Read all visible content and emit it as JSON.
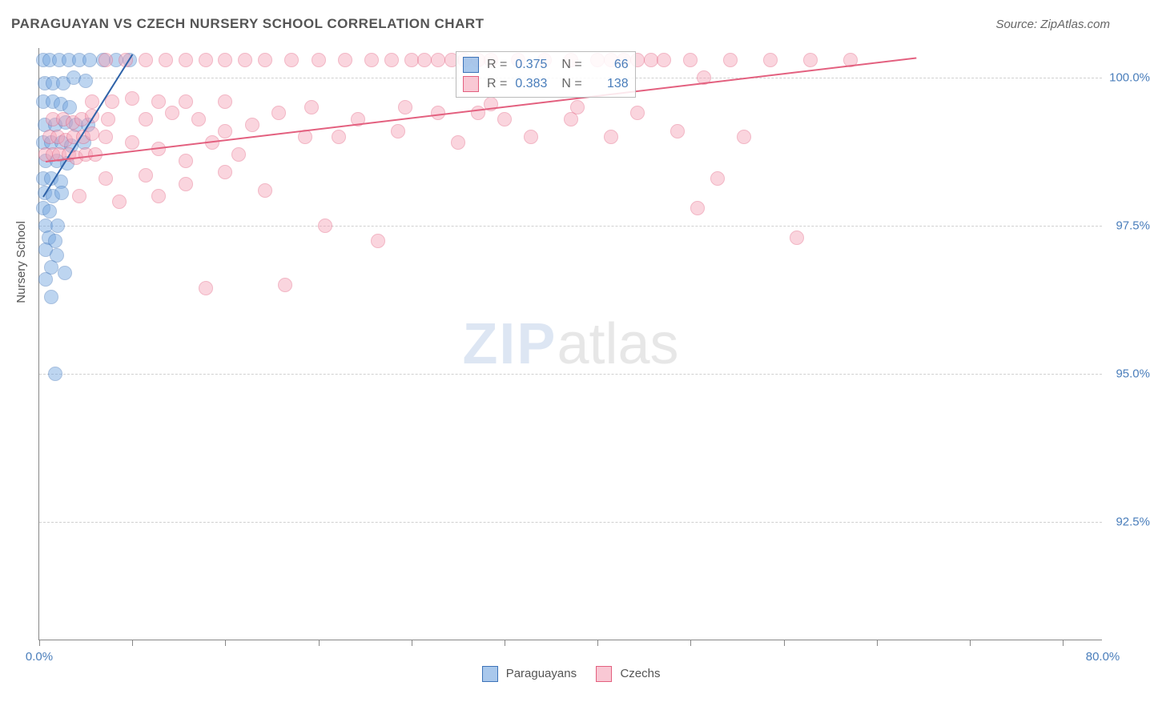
{
  "title": "PARAGUAYAN VS CZECH NURSERY SCHOOL CORRELATION CHART",
  "source_label": "Source: ZipAtlas.com",
  "ylabel": "Nursery School",
  "watermark": {
    "part1": "ZIP",
    "part2": "atlas"
  },
  "chart": {
    "type": "scatter",
    "background_color": "#ffffff",
    "grid_color": "#d0d0d0",
    "axis_color": "#888888",
    "tick_label_color": "#4a7ebb",
    "xlim": [
      0,
      80
    ],
    "ylim": [
      90.5,
      100.5
    ],
    "xticks": [
      0,
      7,
      14,
      21,
      28,
      35,
      42,
      49,
      56,
      63,
      70,
      77
    ],
    "xtick_labels": {
      "0": "0.0%",
      "80": "80.0%"
    },
    "yticks": [
      92.5,
      95.0,
      97.5,
      100.0
    ],
    "ytick_labels": [
      "92.5%",
      "95.0%",
      "97.5%",
      "100.0%"
    ],
    "point_radius": 9,
    "point_opacity": 0.45,
    "point_border_width": 1.5,
    "series": [
      {
        "name": "Paraguayans",
        "fill_color": "#6fa3e0",
        "border_color": "#3d73b8",
        "R": "0.375",
        "N": "66",
        "trend": {
          "x1": 0.3,
          "y1": 98.0,
          "x2": 7.0,
          "y2": 100.4,
          "color": "#2e62a8",
          "width": 2
        },
        "points": [
          [
            0.3,
            100.3
          ],
          [
            0.8,
            100.3
          ],
          [
            1.5,
            100.3
          ],
          [
            2.2,
            100.3
          ],
          [
            3.0,
            100.3
          ],
          [
            3.8,
            100.3
          ],
          [
            4.8,
            100.3
          ],
          [
            5.8,
            100.3
          ],
          [
            6.8,
            100.3
          ],
          [
            0.4,
            99.9
          ],
          [
            1.0,
            99.9
          ],
          [
            1.8,
            99.9
          ],
          [
            2.6,
            100.0
          ],
          [
            3.5,
            99.95
          ],
          [
            0.3,
            99.6
          ],
          [
            1.0,
            99.6
          ],
          [
            1.6,
            99.55
          ],
          [
            2.3,
            99.5
          ],
          [
            0.4,
            99.2
          ],
          [
            1.2,
            99.2
          ],
          [
            2.0,
            99.25
          ],
          [
            2.8,
            99.2
          ],
          [
            3.7,
            99.2
          ],
          [
            0.3,
            98.9
          ],
          [
            0.9,
            98.9
          ],
          [
            1.7,
            98.9
          ],
          [
            2.4,
            98.85
          ],
          [
            3.4,
            98.9
          ],
          [
            0.5,
            98.6
          ],
          [
            1.3,
            98.6
          ],
          [
            2.1,
            98.55
          ],
          [
            0.3,
            98.3
          ],
          [
            0.9,
            98.3
          ],
          [
            1.6,
            98.25
          ],
          [
            0.4,
            98.05
          ],
          [
            1.0,
            98.0
          ],
          [
            1.7,
            98.05
          ],
          [
            0.3,
            97.8
          ],
          [
            0.8,
            97.75
          ],
          [
            0.5,
            97.5
          ],
          [
            1.4,
            97.5
          ],
          [
            0.7,
            97.3
          ],
          [
            1.2,
            97.25
          ],
          [
            0.5,
            97.1
          ],
          [
            1.3,
            97.0
          ],
          [
            0.9,
            96.8
          ],
          [
            1.9,
            96.7
          ],
          [
            0.5,
            96.6
          ],
          [
            0.9,
            96.3
          ],
          [
            1.2,
            95.0
          ]
        ]
      },
      {
        "name": "Czechs",
        "fill_color": "#f5a3b8",
        "border_color": "#e3607f",
        "R": "0.383",
        "N": "138",
        "trend": {
          "x1": 0.5,
          "y1": 98.6,
          "x2": 66.0,
          "y2": 100.35,
          "color": "#e3607f",
          "width": 2
        },
        "points": [
          [
            0.5,
            98.7
          ],
          [
            1.0,
            98.7
          ],
          [
            1.5,
            98.7
          ],
          [
            2.2,
            98.7
          ],
          [
            2.8,
            98.65
          ],
          [
            3.5,
            98.7
          ],
          [
            4.2,
            98.7
          ],
          [
            0.8,
            99.0
          ],
          [
            1.4,
            99.0
          ],
          [
            2.0,
            98.95
          ],
          [
            2.6,
            99.0
          ],
          [
            3.3,
            99.0
          ],
          [
            4.0,
            99.05
          ],
          [
            5.0,
            99.0
          ],
          [
            1.0,
            99.3
          ],
          [
            1.8,
            99.3
          ],
          [
            2.5,
            99.25
          ],
          [
            3.2,
            99.3
          ],
          [
            4.0,
            99.35
          ],
          [
            5.2,
            99.3
          ],
          [
            5.0,
            100.3
          ],
          [
            6.5,
            100.3
          ],
          [
            8.0,
            100.3
          ],
          [
            9.5,
            100.3
          ],
          [
            11.0,
            100.3
          ],
          [
            12.5,
            100.3
          ],
          [
            14.0,
            100.3
          ],
          [
            15.5,
            100.3
          ],
          [
            17.0,
            100.3
          ],
          [
            19.0,
            100.3
          ],
          [
            21.0,
            100.3
          ],
          [
            23.0,
            100.3
          ],
          [
            25.0,
            100.3
          ],
          [
            26.5,
            100.3
          ],
          [
            28.0,
            100.3
          ],
          [
            29.0,
            100.3
          ],
          [
            30.0,
            100.3
          ],
          [
            31.0,
            100.3
          ],
          [
            32.0,
            100.3
          ],
          [
            33.0,
            100.3
          ],
          [
            34.0,
            100.3
          ],
          [
            36.0,
            100.3
          ],
          [
            38.0,
            100.3
          ],
          [
            40.0,
            100.3
          ],
          [
            42.0,
            100.3
          ],
          [
            43.0,
            100.3
          ],
          [
            44.0,
            100.3
          ],
          [
            45.0,
            100.3
          ],
          [
            46.0,
            100.3
          ],
          [
            47.0,
            100.3
          ],
          [
            49.0,
            100.3
          ],
          [
            52.0,
            100.3
          ],
          [
            55.0,
            100.3
          ],
          [
            58.0,
            100.3
          ],
          [
            61.0,
            100.3
          ],
          [
            8.0,
            99.3
          ],
          [
            10.0,
            99.4
          ],
          [
            12.0,
            99.3
          ],
          [
            14.0,
            99.1
          ],
          [
            16.0,
            99.2
          ],
          [
            18.0,
            99.4
          ],
          [
            20.0,
            99.0
          ],
          [
            22.5,
            99.0
          ],
          [
            24.0,
            99.3
          ],
          [
            27.0,
            99.1
          ],
          [
            30.0,
            99.4
          ],
          [
            31.5,
            98.9
          ],
          [
            33.0,
            99.4
          ],
          [
            35.0,
            99.3
          ],
          [
            37.0,
            99.0
          ],
          [
            40.0,
            99.3
          ],
          [
            43.0,
            99.0
          ],
          [
            45.0,
            99.4
          ],
          [
            7.0,
            98.9
          ],
          [
            9.0,
            98.8
          ],
          [
            11.0,
            98.6
          ],
          [
            13.0,
            98.9
          ],
          [
            15.0,
            98.7
          ],
          [
            5.0,
            98.3
          ],
          [
            8.0,
            98.35
          ],
          [
            11.0,
            98.2
          ],
          [
            14.0,
            98.4
          ],
          [
            17.0,
            98.1
          ],
          [
            3.0,
            98.0
          ],
          [
            6.0,
            97.9
          ],
          [
            9.0,
            98.0
          ],
          [
            53.0,
            99.0
          ],
          [
            51.0,
            98.3
          ],
          [
            49.5,
            97.8
          ],
          [
            57.0,
            97.3
          ],
          [
            21.5,
            97.5
          ],
          [
            25.5,
            97.25
          ],
          [
            12.5,
            96.45
          ],
          [
            18.5,
            96.5
          ],
          [
            20.5,
            99.5
          ],
          [
            27.5,
            99.5
          ],
          [
            34.0,
            99.55
          ],
          [
            40.5,
            99.5
          ],
          [
            48.0,
            99.1
          ],
          [
            50.0,
            100.0
          ],
          [
            4.0,
            99.6
          ],
          [
            5.5,
            99.6
          ],
          [
            7.0,
            99.65
          ],
          [
            9.0,
            99.6
          ],
          [
            11.0,
            99.6
          ],
          [
            14.0,
            99.6
          ]
        ]
      }
    ]
  },
  "legend": {
    "items": [
      {
        "label": "Paraguayans",
        "fill": "#6fa3e0",
        "border": "#3d73b8"
      },
      {
        "label": "Czechs",
        "fill": "#f5a3b8",
        "border": "#e3607f"
      }
    ]
  }
}
